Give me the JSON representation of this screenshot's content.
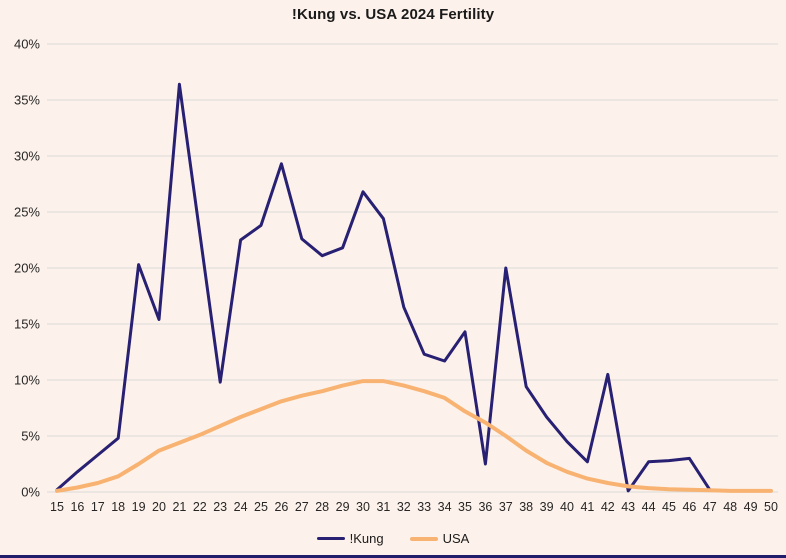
{
  "page_title": "!Kung vs. USA 2024 Fertility",
  "colors": {
    "background": "#fdf2eb",
    "gridline": "#d9d9d9",
    "axis_text": "#262626",
    "title_text": "#1a1a1a",
    "kung_line": "#282072",
    "usa_line": "#f8b372",
    "bottom_strip": "#201d6b"
  },
  "chart_data": {
    "type": "line",
    "title": "!Kung vs. USA 2024 Fertility",
    "xlabel": "",
    "ylabel": "",
    "x": [
      15,
      16,
      17,
      18,
      19,
      20,
      21,
      22,
      23,
      24,
      25,
      26,
      27,
      28,
      29,
      30,
      31,
      32,
      33,
      34,
      35,
      36,
      37,
      38,
      39,
      40,
      41,
      42,
      43,
      44,
      45,
      46,
      47,
      48,
      49,
      50
    ],
    "x_tick_labels": [
      "15",
      "16",
      "17",
      "18",
      "19",
      "20",
      "21",
      "22",
      "23",
      "24",
      "25",
      "26",
      "27",
      "28",
      "29",
      "30",
      "31",
      "32",
      "33",
      "34",
      "35",
      "36",
      "37",
      "38",
      "39",
      "40",
      "41",
      "42",
      "43",
      "44",
      "45",
      "46",
      "47",
      "48",
      "49",
      "50"
    ],
    "ylim": [
      0,
      40
    ],
    "ytick_step": 5,
    "y_tick_labels": [
      "0%",
      "5%",
      "10%",
      "15%",
      "20%",
      "25%",
      "30%",
      "35%",
      "40%"
    ],
    "grid": "horizontal",
    "legend_position": "bottom-center",
    "series": [
      {
        "name": "!Kung",
        "color": "#282072",
        "stroke_width": 3,
        "values": [
          0.2,
          1.8,
          3.3,
          4.8,
          20.3,
          15.4,
          36.4,
          23.1,
          9.8,
          22.5,
          23.8,
          29.3,
          22.6,
          21.1,
          21.8,
          26.8,
          24.4,
          16.5,
          12.3,
          11.7,
          14.3,
          2.5,
          20.0,
          9.4,
          6.7,
          4.5,
          2.7,
          10.5,
          0.1,
          2.7,
          2.8,
          3.0,
          0.2,
          null,
          null,
          null
        ]
      },
      {
        "name": "USA",
        "color": "#f8b372",
        "stroke_width": 4,
        "values": [
          0.1,
          0.4,
          0.8,
          1.4,
          2.5,
          3.7,
          4.4,
          5.1,
          5.9,
          6.7,
          7.4,
          8.1,
          8.6,
          9.0,
          9.5,
          9.9,
          9.9,
          9.5,
          9.0,
          8.4,
          7.2,
          6.2,
          5.0,
          3.7,
          2.6,
          1.8,
          1.2,
          0.8,
          0.5,
          0.35,
          0.25,
          0.2,
          0.15,
          0.1,
          0.1,
          0.1
        ]
      }
    ]
  },
  "legend": {
    "items": [
      {
        "label": "!Kung"
      },
      {
        "label": "USA"
      }
    ]
  }
}
